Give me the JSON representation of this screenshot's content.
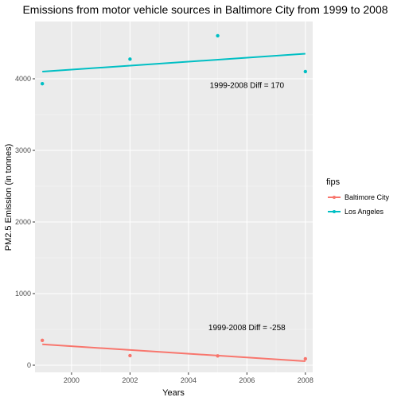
{
  "chart_data": {
    "type": "scatter",
    "title": "Emissions from motor vehicle sources in Baltimore City from 1999 to 2008",
    "xlabel": "Years",
    "ylabel": "PM2.5 Emission (in tonnes)",
    "xlim": [
      1998.75,
      2008.25
    ],
    "ylim": [
      -100,
      4800
    ],
    "x_ticks": [
      2000,
      2002,
      2004,
      2006,
      2008
    ],
    "y_ticks": [
      0,
      1000,
      2000,
      3000,
      4000
    ],
    "grid": true,
    "background": "#ebebeb",
    "legend": {
      "title": "fips",
      "position": "right"
    },
    "series": [
      {
        "name": "Baltimore City",
        "color": "#f8766d",
        "points": [
          {
            "x": 1999,
            "y": 347
          },
          {
            "x": 2002,
            "y": 134
          },
          {
            "x": 2005,
            "y": 130
          },
          {
            "x": 2008,
            "y": 89
          }
        ],
        "trend": {
          "x0": 1999,
          "y0": 291,
          "x1": 2008,
          "y1": 56
        }
      },
      {
        "name": "Los Angeles",
        "color": "#00bfc4",
        "points": [
          {
            "x": 1999,
            "y": 3931
          },
          {
            "x": 2002,
            "y": 4274
          },
          {
            "x": 2005,
            "y": 4601
          },
          {
            "x": 2008,
            "y": 4101
          }
        ],
        "trend": {
          "x0": 1999,
          "y0": 4100,
          "x1": 2008,
          "y1": 4350
        }
      }
    ],
    "annotations": [
      {
        "text": "1999-2008 Diff = 170",
        "x": 2006,
        "y": 3870
      },
      {
        "text": "1999-2008 Diff = -258",
        "x": 2006,
        "y": 490
      }
    ]
  }
}
